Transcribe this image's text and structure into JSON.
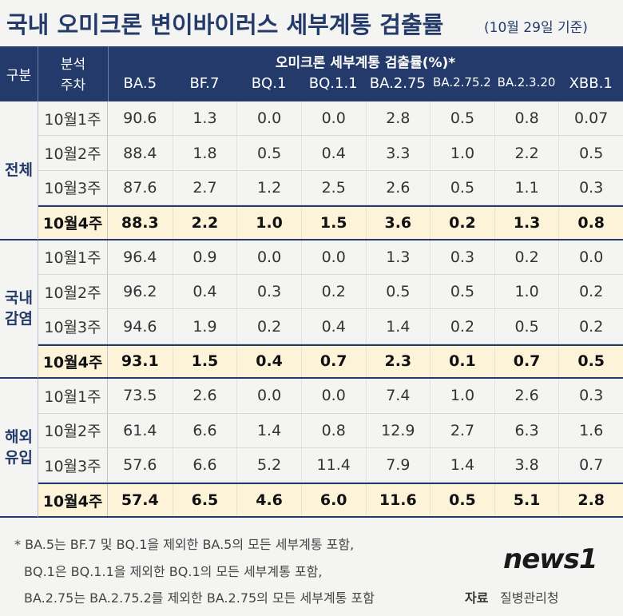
{
  "header": {
    "title": "국내 오미크론 변이바이러스 세부계통 검출률",
    "subtitle": "(10월 29일 기준)"
  },
  "table": {
    "group_header": "구분",
    "week_header": [
      "분석",
      "주차"
    ],
    "value_header": "오미크론 세부계통 검출률(%)*",
    "columns": [
      "BA.5",
      "BF.7",
      "BQ.1",
      "BQ.1.1",
      "BA.2.75",
      "BA.2.75.2",
      "BA.2.3.20",
      "XBB.1"
    ],
    "groups": [
      {
        "label": [
          "전체"
        ],
        "rows": [
          {
            "week": "10월1주",
            "values": [
              "90.6",
              "1.3",
              "0.0",
              "0.0",
              "2.8",
              "0.5",
              "0.8",
              "0.07"
            ]
          },
          {
            "week": "10월2주",
            "values": [
              "88.4",
              "1.8",
              "0.5",
              "0.4",
              "3.3",
              "1.0",
              "2.2",
              "0.5"
            ]
          },
          {
            "week": "10월3주",
            "values": [
              "87.6",
              "2.7",
              "1.2",
              "2.5",
              "2.6",
              "0.5",
              "1.1",
              "0.3"
            ]
          },
          {
            "week": "10월4주",
            "values": [
              "88.3",
              "2.2",
              "1.0",
              "1.5",
              "3.6",
              "0.2",
              "1.3",
              "0.8"
            ]
          }
        ]
      },
      {
        "label": [
          "국내",
          "감염"
        ],
        "rows": [
          {
            "week": "10월1주",
            "values": [
              "96.4",
              "0.9",
              "0.0",
              "0.0",
              "1.3",
              "0.3",
              "0.2",
              "0.0"
            ]
          },
          {
            "week": "10월2주",
            "values": [
              "96.2",
              "0.4",
              "0.3",
              "0.2",
              "0.5",
              "0.5",
              "1.0",
              "0.2"
            ]
          },
          {
            "week": "10월3주",
            "values": [
              "94.6",
              "1.9",
              "0.2",
              "0.4",
              "1.4",
              "0.2",
              "0.5",
              "0.2"
            ]
          },
          {
            "week": "10월4주",
            "values": [
              "93.1",
              "1.5",
              "0.4",
              "0.7",
              "2.3",
              "0.1",
              "0.7",
              "0.5"
            ]
          }
        ]
      },
      {
        "label": [
          "해외",
          "유입"
        ],
        "rows": [
          {
            "week": "10월1주",
            "values": [
              "73.5",
              "2.6",
              "0.0",
              "0.0",
              "7.4",
              "1.0",
              "2.6",
              "0.3"
            ]
          },
          {
            "week": "10월2주",
            "values": [
              "61.4",
              "6.6",
              "1.4",
              "0.8",
              "12.9",
              "2.7",
              "6.3",
              "1.6"
            ]
          },
          {
            "week": "10월3주",
            "values": [
              "57.6",
              "6.6",
              "5.2",
              "11.4",
              "7.9",
              "1.4",
              "3.8",
              "0.7"
            ]
          },
          {
            "week": "10월4주",
            "values": [
              "57.4",
              "6.5",
              "4.6",
              "6.0",
              "11.6",
              "0.5",
              "5.1",
              "2.8"
            ]
          }
        ]
      }
    ]
  },
  "footer": {
    "notes": [
      "* BA.5는 BF.7 및 BQ.1을 제외한 BA.5의 모든 세부계통 포함,",
      "BQ.1은 BQ.1.1을 제외한 BQ.1의 모든 세부계통 포함,",
      "BA.2.75는 BA.2.75.2를 제외한 BA.2.75의 모든 세부계통 포함"
    ],
    "source_label": "자료",
    "source": "질병관리청",
    "logo": "news1"
  }
}
